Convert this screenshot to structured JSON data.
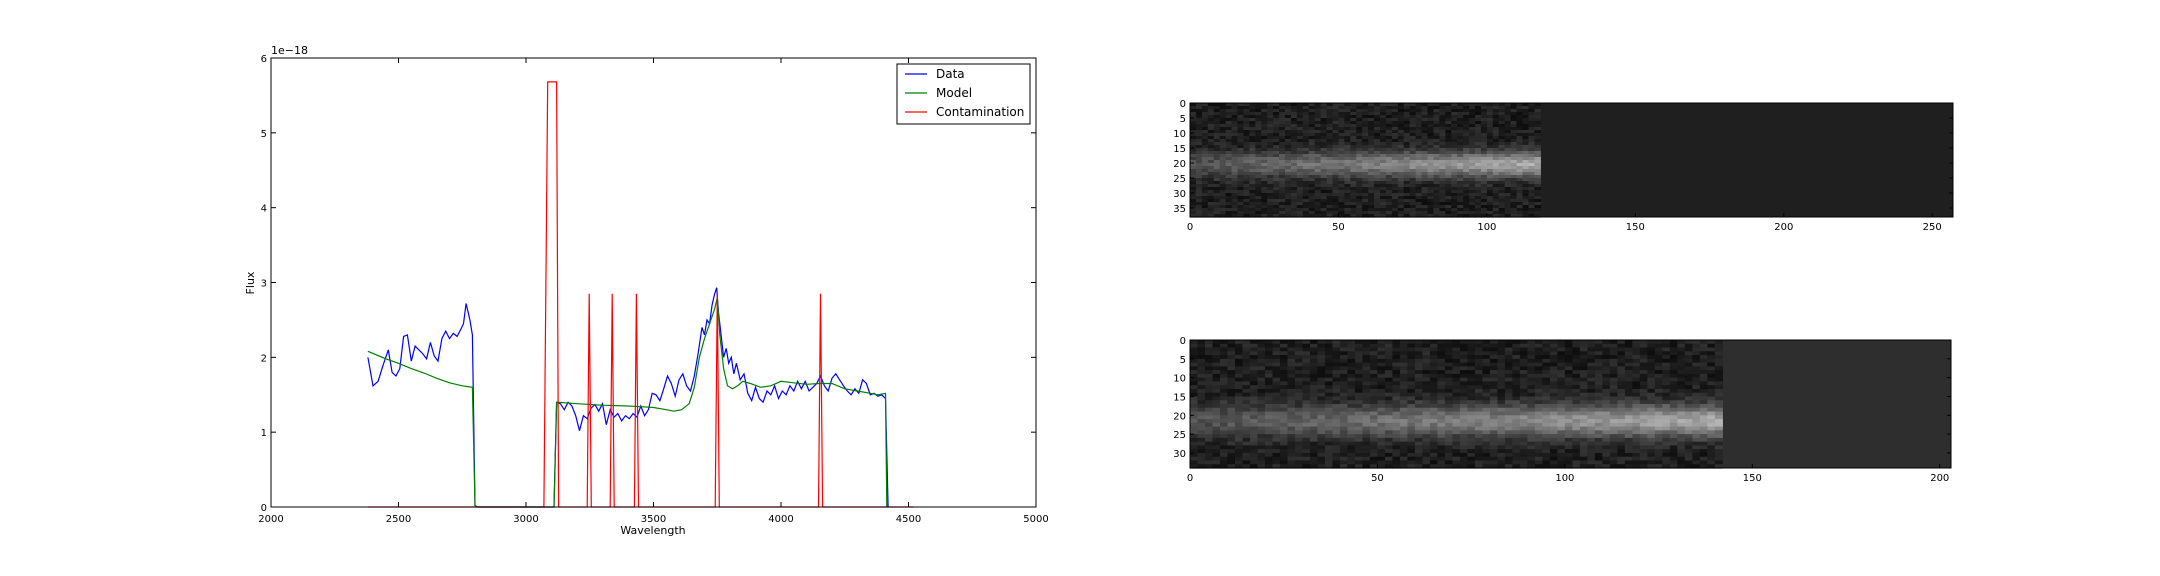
{
  "chart_data": [
    {
      "type": "line",
      "xlabel": "Wavelength",
      "ylabel": "Flux",
      "offset_text": "1e−18",
      "xlim": [
        2000,
        5000
      ],
      "ylim": [
        0,
        6
      ],
      "xticks": [
        2000,
        2500,
        3000,
        3500,
        4000,
        4500,
        5000
      ],
      "yticks": [
        0,
        1,
        2,
        3,
        4,
        5,
        6
      ],
      "grid": false,
      "legend": "top-right",
      "series": [
        {
          "name": "Data",
          "color": "#0000ff",
          "points": [
            [
              2380,
              2.0
            ],
            [
              2400,
              1.62
            ],
            [
              2420,
              1.68
            ],
            [
              2440,
              1.9
            ],
            [
              2460,
              2.1
            ],
            [
              2475,
              1.8
            ],
            [
              2490,
              1.75
            ],
            [
              2505,
              1.85
            ],
            [
              2520,
              2.28
            ],
            [
              2535,
              2.3
            ],
            [
              2550,
              1.95
            ],
            [
              2565,
              2.15
            ],
            [
              2580,
              2.1
            ],
            [
              2595,
              2.05
            ],
            [
              2610,
              1.98
            ],
            [
              2625,
              2.2
            ],
            [
              2640,
              2.02
            ],
            [
              2655,
              1.95
            ],
            [
              2670,
              2.25
            ],
            [
              2685,
              2.35
            ],
            [
              2700,
              2.25
            ],
            [
              2715,
              2.32
            ],
            [
              2730,
              2.28
            ],
            [
              2745,
              2.38
            ],
            [
              2755,
              2.45
            ],
            [
              2765,
              2.72
            ],
            [
              2780,
              2.5
            ],
            [
              2790,
              2.3
            ],
            [
              2800,
              0.02
            ],
            [
              2810,
              0.0
            ],
            [
              3110,
              0.0
            ],
            [
              3120,
              1.4
            ],
            [
              3135,
              1.38
            ],
            [
              3150,
              1.3
            ],
            [
              3165,
              1.4
            ],
            [
              3180,
              1.35
            ],
            [
              3195,
              1.22
            ],
            [
              3210,
              1.02
            ],
            [
              3225,
              1.22
            ],
            [
              3240,
              1.18
            ],
            [
              3255,
              1.32
            ],
            [
              3270,
              1.37
            ],
            [
              3285,
              1.28
            ],
            [
              3300,
              1.38
            ],
            [
              3315,
              1.1
            ],
            [
              3330,
              1.3
            ],
            [
              3345,
              1.2
            ],
            [
              3360,
              1.25
            ],
            [
              3375,
              1.15
            ],
            [
              3390,
              1.22
            ],
            [
              3405,
              1.18
            ],
            [
              3420,
              1.25
            ],
            [
              3435,
              1.2
            ],
            [
              3450,
              1.35
            ],
            [
              3465,
              1.22
            ],
            [
              3480,
              1.3
            ],
            [
              3495,
              1.52
            ],
            [
              3510,
              1.5
            ],
            [
              3525,
              1.42
            ],
            [
              3540,
              1.58
            ],
            [
              3555,
              1.75
            ],
            [
              3570,
              1.65
            ],
            [
              3585,
              1.48
            ],
            [
              3600,
              1.7
            ],
            [
              3615,
              1.78
            ],
            [
              3630,
              1.62
            ],
            [
              3645,
              1.55
            ],
            [
              3660,
              1.75
            ],
            [
              3675,
              2.05
            ],
            [
              3690,
              2.4
            ],
            [
              3700,
              2.3
            ],
            [
              3710,
              2.5
            ],
            [
              3720,
              2.45
            ],
            [
              3730,
              2.7
            ],
            [
              3740,
              2.85
            ],
            [
              3748,
              2.93
            ],
            [
              3755,
              2.6
            ],
            [
              3765,
              2.3
            ],
            [
              3775,
              2.0
            ],
            [
              3785,
              2.12
            ],
            [
              3795,
              1.92
            ],
            [
              3805,
              2.0
            ],
            [
              3815,
              1.78
            ],
            [
              3825,
              1.92
            ],
            [
              3840,
              1.7
            ],
            [
              3855,
              1.78
            ],
            [
              3870,
              1.52
            ],
            [
              3885,
              1.42
            ],
            [
              3900,
              1.6
            ],
            [
              3915,
              1.45
            ],
            [
              3930,
              1.4
            ],
            [
              3945,
              1.55
            ],
            [
              3960,
              1.5
            ],
            [
              3975,
              1.62
            ],
            [
              3990,
              1.45
            ],
            [
              4005,
              1.55
            ],
            [
              4020,
              1.5
            ],
            [
              4035,
              1.62
            ],
            [
              4050,
              1.55
            ],
            [
              4065,
              1.68
            ],
            [
              4080,
              1.58
            ],
            [
              4095,
              1.68
            ],
            [
              4110,
              1.55
            ],
            [
              4125,
              1.6
            ],
            [
              4140,
              1.65
            ],
            [
              4155,
              1.75
            ],
            [
              4170,
              1.62
            ],
            [
              4185,
              1.55
            ],
            [
              4200,
              1.72
            ],
            [
              4215,
              1.78
            ],
            [
              4230,
              1.7
            ],
            [
              4245,
              1.62
            ],
            [
              4260,
              1.55
            ],
            [
              4275,
              1.5
            ],
            [
              4290,
              1.58
            ],
            [
              4305,
              1.52
            ],
            [
              4320,
              1.7
            ],
            [
              4335,
              1.65
            ],
            [
              4350,
              1.5
            ],
            [
              4365,
              1.52
            ],
            [
              4380,
              1.48
            ],
            [
              4395,
              1.5
            ],
            [
              4410,
              1.45
            ],
            [
              4420,
              0.0
            ]
          ]
        },
        {
          "name": "Model",
          "color": "#008000",
          "points": [
            [
              2380,
              2.08
            ],
            [
              2450,
              1.98
            ],
            [
              2500,
              1.92
            ],
            [
              2550,
              1.85
            ],
            [
              2600,
              1.79
            ],
            [
              2650,
              1.72
            ],
            [
              2700,
              1.66
            ],
            [
              2750,
              1.62
            ],
            [
              2790,
              1.6
            ],
            [
              2800,
              0.02
            ],
            [
              2810,
              0.0
            ],
            [
              3110,
              0.0
            ],
            [
              3120,
              1.4
            ],
            [
              3200,
              1.38
            ],
            [
              3300,
              1.36
            ],
            [
              3400,
              1.35
            ],
            [
              3450,
              1.34
            ],
            [
              3500,
              1.33
            ],
            [
              3550,
              1.3
            ],
            [
              3580,
              1.28
            ],
            [
              3610,
              1.3
            ],
            [
              3640,
              1.38
            ],
            [
              3660,
              1.6
            ],
            [
              3680,
              2.0
            ],
            [
              3700,
              2.25
            ],
            [
              3720,
              2.45
            ],
            [
              3740,
              2.65
            ],
            [
              3750,
              2.8
            ],
            [
              3760,
              2.3
            ],
            [
              3775,
              1.85
            ],
            [
              3790,
              1.62
            ],
            [
              3810,
              1.58
            ],
            [
              3830,
              1.62
            ],
            [
              3850,
              1.68
            ],
            [
              3880,
              1.65
            ],
            [
              3920,
              1.6
            ],
            [
              3960,
              1.62
            ],
            [
              4000,
              1.68
            ],
            [
              4050,
              1.66
            ],
            [
              4100,
              1.64
            ],
            [
              4150,
              1.65
            ],
            [
              4200,
              1.65
            ],
            [
              4250,
              1.58
            ],
            [
              4300,
              1.55
            ],
            [
              4350,
              1.52
            ],
            [
              4380,
              1.5
            ],
            [
              4410,
              1.52
            ],
            [
              4415,
              0.0
            ]
          ]
        },
        {
          "name": "Contamination",
          "color": "#ff0000",
          "points": [
            [
              2380,
              0.0
            ],
            [
              3070,
              0.0
            ],
            [
              3085,
              5.68
            ],
            [
              3120,
              5.68
            ],
            [
              3128,
              0.0
            ],
            [
              3240,
              0.0
            ],
            [
              3248,
              2.85
            ],
            [
              3256,
              0.0
            ],
            [
              3330,
              0.0
            ],
            [
              3338,
              2.85
            ],
            [
              3346,
              0.0
            ],
            [
              3425,
              0.0
            ],
            [
              3433,
              2.85
            ],
            [
              3441,
              0.0
            ],
            [
              3742,
              0.0
            ],
            [
              3750,
              2.85
            ],
            [
              3758,
              0.0
            ],
            [
              4147,
              0.0
            ],
            [
              4155,
              2.85
            ],
            [
              4163,
              0.0
            ],
            [
              4520,
              0.0
            ]
          ]
        }
      ]
    },
    {
      "type": "heatmap",
      "xlim": [
        0,
        257
      ],
      "ylim": [
        38,
        0
      ],
      "xticks": [
        0,
        50,
        100,
        150,
        200,
        250
      ],
      "yticks": [
        0,
        5,
        10,
        15,
        20,
        25,
        30,
        35
      ],
      "colormap": "gray",
      "trace_row": 20,
      "trace_end_column": 117,
      "background_level": 0.12
    },
    {
      "type": "heatmap",
      "xlim": [
        0,
        203
      ],
      "ylim": [
        34,
        0
      ],
      "xticks": [
        0,
        50,
        100,
        150,
        200
      ],
      "yticks": [
        0,
        5,
        10,
        15,
        20,
        25,
        30
      ],
      "colormap": "gray",
      "trace_row": 21,
      "trace_end_column": 142,
      "background_level": 0.18
    }
  ]
}
